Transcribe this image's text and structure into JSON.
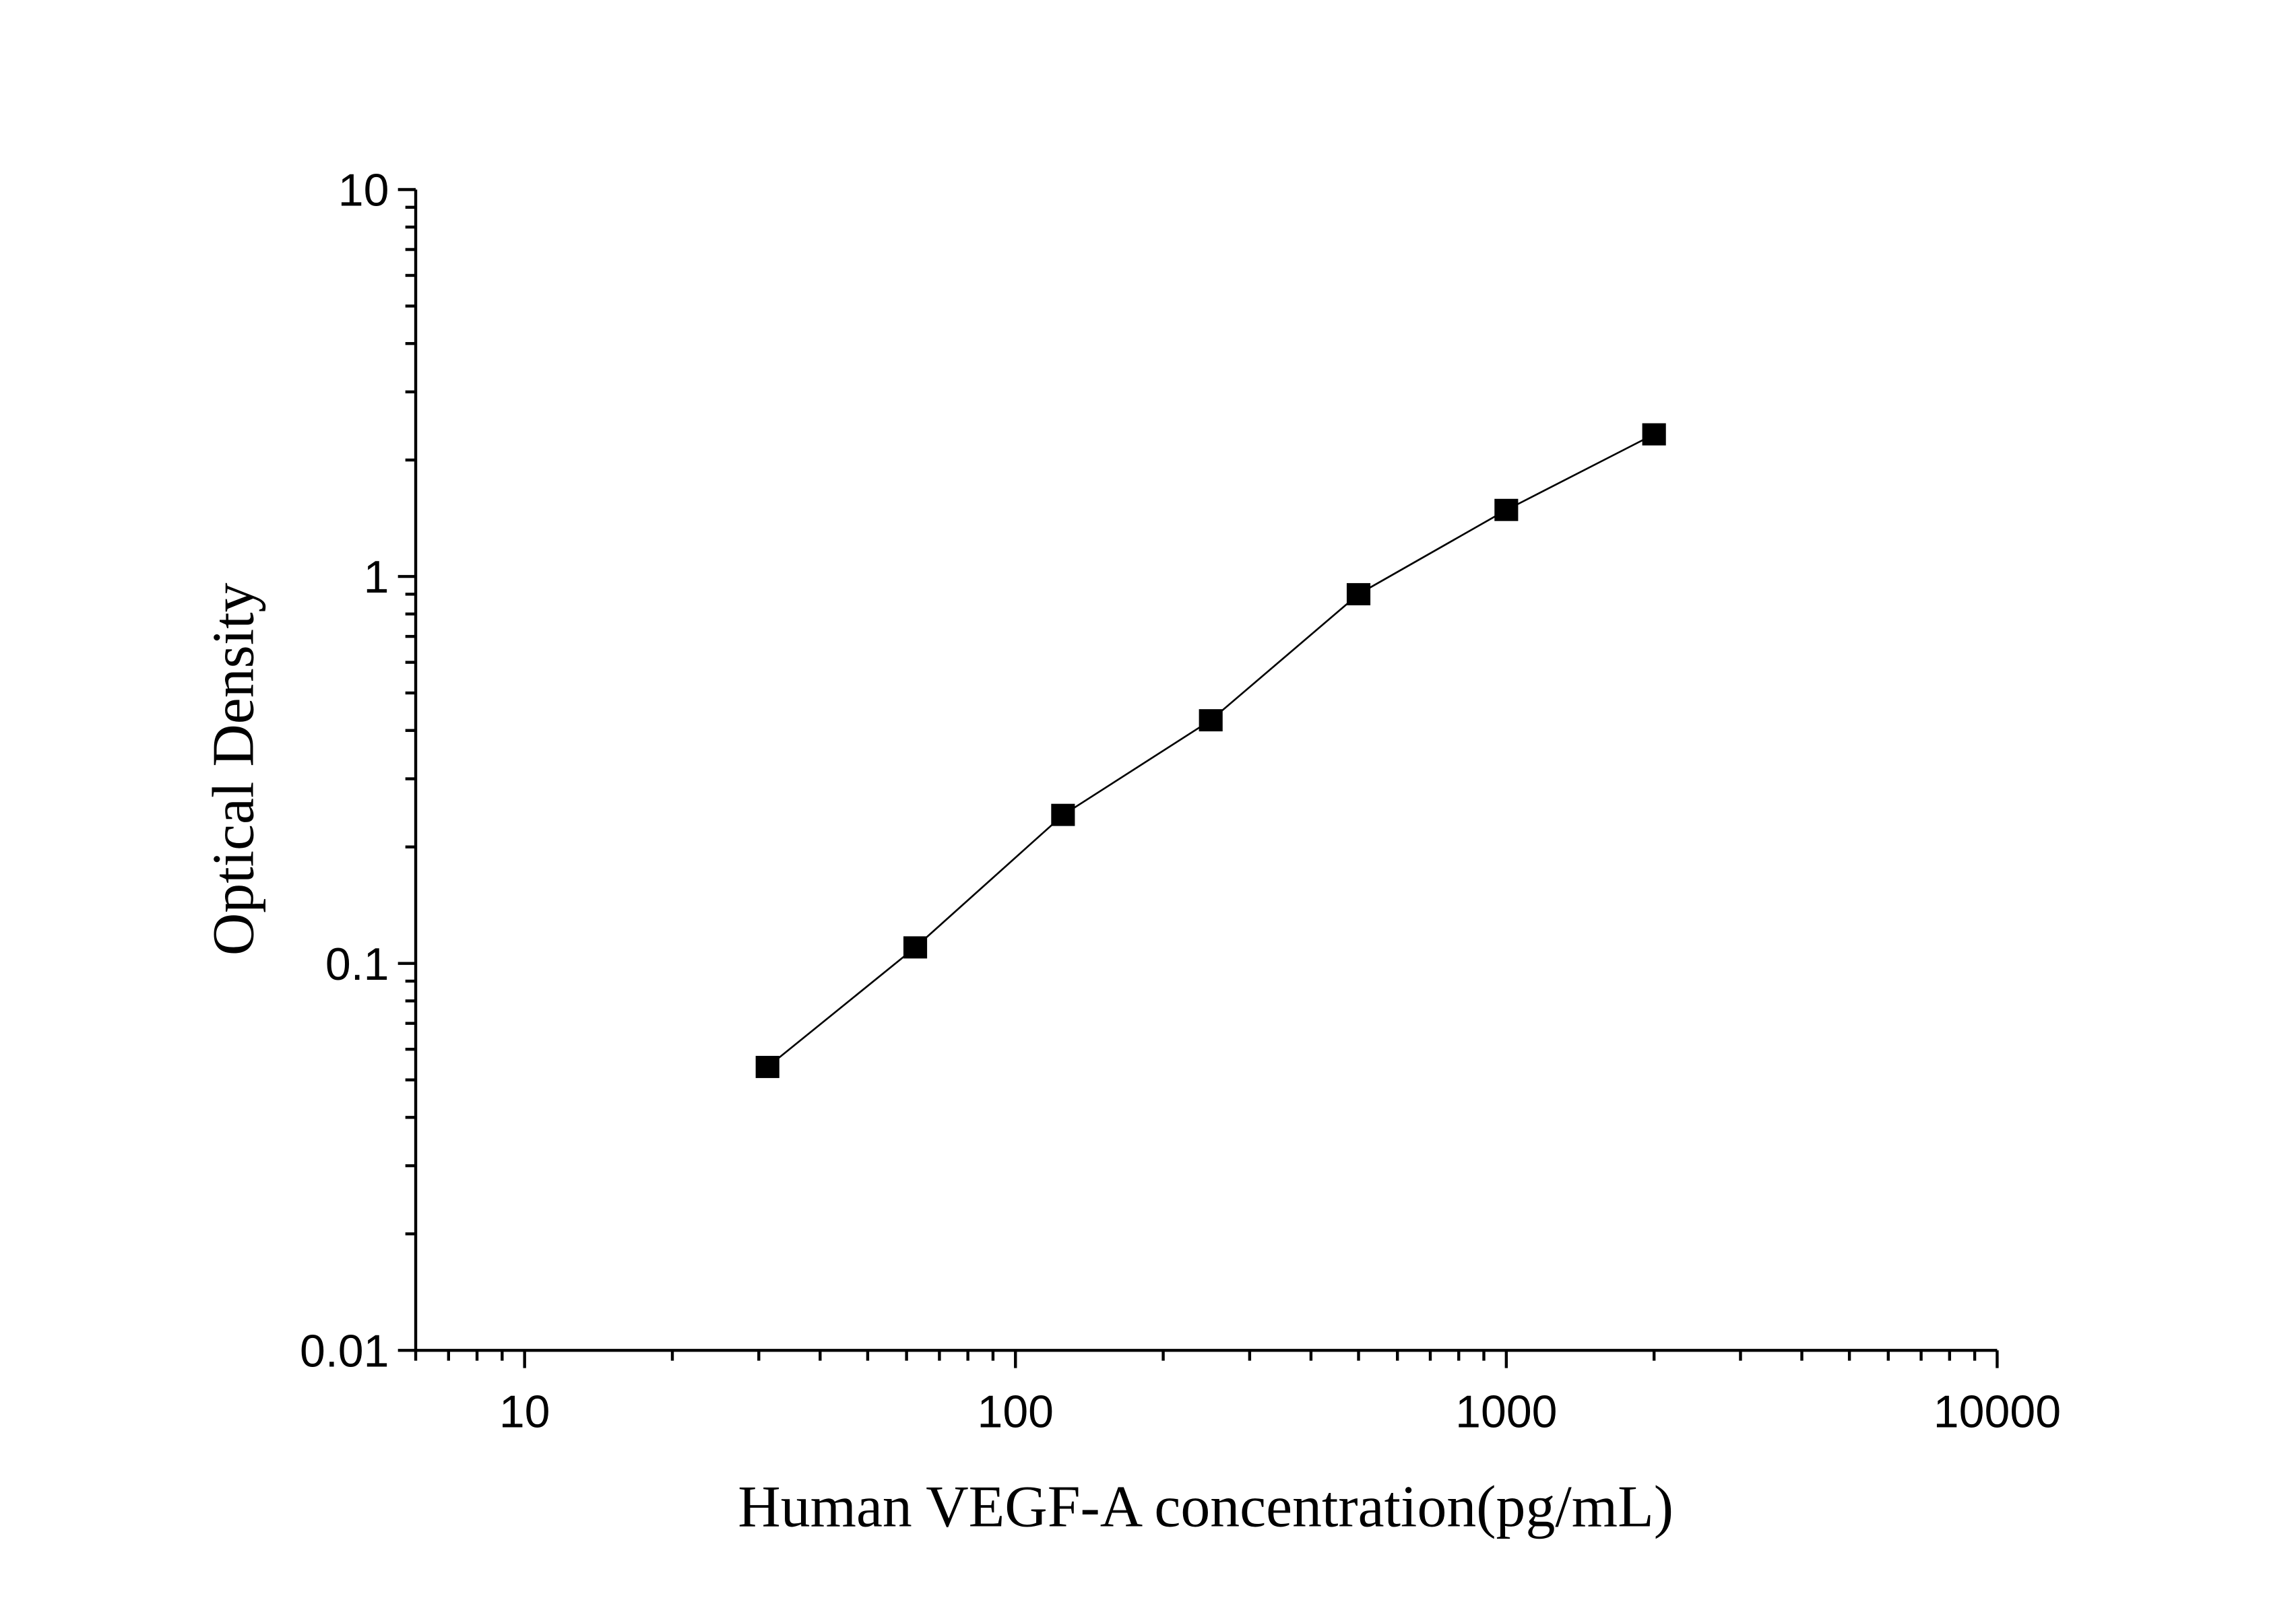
{
  "chart_data": {
    "type": "line",
    "title": "",
    "xlabel": "Human VEGF-A concentration(pg/mL)",
    "ylabel": "Optical Density",
    "x_scale": "log",
    "y_scale": "log",
    "xlim": [
      6,
      10000
    ],
    "ylim": [
      0.01,
      10
    ],
    "x_ticks": [
      "10",
      "100",
      "1000",
      "10000"
    ],
    "y_ticks": [
      "0.01",
      "0.1",
      "1",
      "10"
    ],
    "grid": false,
    "marker": "square",
    "color": "#000000",
    "series": [
      {
        "x": [
          31.25,
          62.5,
          125,
          250,
          500,
          1000,
          2000
        ],
        "y": [
          0.054,
          0.11,
          0.242,
          0.425,
          0.9,
          1.486,
          2.33
        ]
      }
    ]
  }
}
